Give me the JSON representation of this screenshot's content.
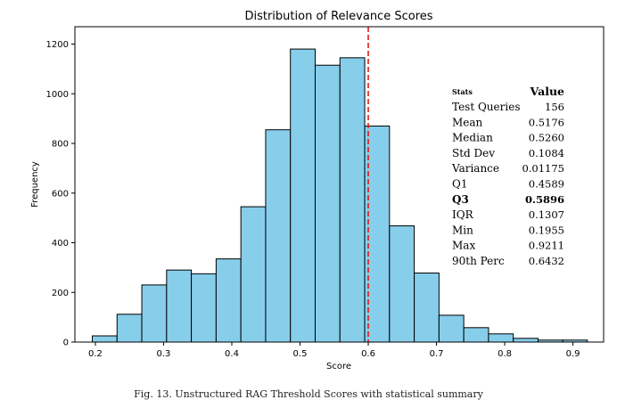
{
  "chart_data": {
    "type": "bar",
    "title": "Distribution of Relevance Scores",
    "xlabel": "Score",
    "ylabel": "Frequency",
    "xlim": [
      0.17,
      0.945
    ],
    "ylim": [
      0,
      1270
    ],
    "x_ticks": [
      0.2,
      0.3,
      0.4,
      0.5,
      0.6,
      0.7,
      0.8,
      0.9
    ],
    "x_tick_labels": [
      "0.2",
      "0.3",
      "0.4",
      "0.5",
      "0.6",
      "0.7",
      "0.8",
      "0.9"
    ],
    "y_ticks": [
      0,
      200,
      400,
      600,
      800,
      1000,
      1200
    ],
    "y_tick_labels": [
      "0",
      "200",
      "400",
      "600",
      "800",
      "1000",
      "1200"
    ],
    "bin_edges": [
      0.1955,
      0.2318,
      0.2681,
      0.3044,
      0.3407,
      0.377,
      0.4133,
      0.4496,
      0.4859,
      0.5222,
      0.5585,
      0.5948,
      0.6311,
      0.6674,
      0.7037,
      0.74,
      0.7763,
      0.8126,
      0.8489,
      0.8852,
      0.9211
    ],
    "values": [
      25,
      112,
      230,
      290,
      275,
      335,
      545,
      855,
      1180,
      1115,
      1145,
      870,
      468,
      278,
      108,
      58,
      33,
      15,
      8,
      8
    ],
    "bar_color": "#87ceeb",
    "edge_color": "#000000",
    "threshold": 0.6,
    "threshold_color": "#e31a1c",
    "grid": false,
    "legend": "none",
    "stats_table": {
      "header": [
        "Stats",
        "Value"
      ],
      "rows": [
        {
          "label": "Test Queries",
          "value": "156",
          "bold": false
        },
        {
          "label": "Mean",
          "value": "0.5176",
          "bold": false
        },
        {
          "label": "Median",
          "value": "0.5260",
          "bold": false
        },
        {
          "label": "Std Dev",
          "value": "0.1084",
          "bold": false
        },
        {
          "label": "Variance",
          "value": "0.01175",
          "bold": false
        },
        {
          "label": "Q1",
          "value": "0.4589",
          "bold": false
        },
        {
          "label": "Q3",
          "value": "0.5896",
          "bold": true
        },
        {
          "label": "IQR",
          "value": "0.1307",
          "bold": false
        },
        {
          "label": "Min",
          "value": "0.1955",
          "bold": false
        },
        {
          "label": "Max",
          "value": "0.9211",
          "bold": false
        },
        {
          "label": "90th Perc",
          "value": "0.6432",
          "bold": false
        }
      ]
    }
  },
  "caption": "Fig. 13.  Unstructured RAG Threshold Scores with statistical summary"
}
